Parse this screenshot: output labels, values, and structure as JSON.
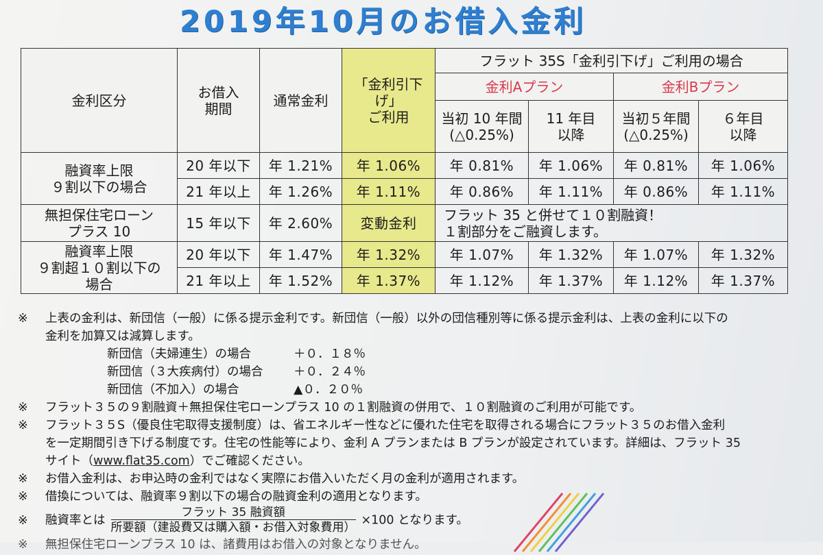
{
  "title": "2019年10月のお借入金利",
  "table": {
    "headers": {
      "category": "金利区分",
      "period": "お借入\n期間",
      "normal": "通常金利",
      "reduced": "「金利引下げ」\nご利用",
      "flat35s": "フラット 35S「金利引下げ」ご利用の場合",
      "plan_a": "金利Aプラン",
      "plan_b": "金利Bプラン",
      "a_first": "当初 10 年間\n(△0.25%)",
      "a_after": "11 年目\n以降",
      "b_first": "当初５年間\n(△0.25%)",
      "b_after": "６年目\n以降"
    },
    "groups": [
      {
        "category": "融資率上限\n９割以下の場合",
        "rows": [
          {
            "period": "20 年以下",
            "normal": "年 1.21%",
            "reduced": "年 1.06%",
            "a_first": "年 0.81%",
            "a_after": "年 1.06%",
            "b_first": "年 0.81%",
            "b_after": "年 1.06%"
          },
          {
            "period": "21 年以上",
            "normal": "年 1.26%",
            "reduced": "年 1.11%",
            "a_first": "年 0.86%",
            "a_after": "年 1.11%",
            "b_first": "年 0.86%",
            "b_after": "年 1.11%"
          }
        ]
      },
      {
        "category": "無担保住宅ローン\nプラス 10",
        "rows": [
          {
            "period": "15 年以下",
            "normal": "年 2.60%",
            "reduced": "変動金利",
            "merged": "フラット 35 と併せて１０割融資！\n１割部分をご融資します。"
          }
        ]
      },
      {
        "category": "融資率上限\n９割超１０割以下の\n場合",
        "rows": [
          {
            "period": "20 年以下",
            "normal": "年 1.47%",
            "reduced": "年 1.32%",
            "a_first": "年 1.07%",
            "a_after": "年 1.32%",
            "b_first": "年 1.07%",
            "b_after": "年 1.32%"
          },
          {
            "period": "21 年以上",
            "normal": "年 1.52%",
            "reduced": "年 1.37%",
            "a_first": "年 1.12%",
            "a_after": "年 1.37%",
            "b_first": "年 1.12%",
            "b_after": "年 1.37%"
          }
        ]
      }
    ]
  },
  "notes": {
    "mark": "※",
    "n1_line1": "上表の金利は、新団信（一般）に係る提示金利です。新団信（一般）以外の団信種別等に係る提示金利は、上表の金利に以下の",
    "n1_line2": "金利を加算又は減算します。",
    "sub": [
      {
        "label": "新団信（夫婦連生）の場合",
        "value": "＋０．１８％"
      },
      {
        "label": "新団信（３大疾病付）の場合",
        "value": "＋０．２４％"
      },
      {
        "label": "新団信（不加入）の場合",
        "value": "▲０．２０％"
      }
    ],
    "n2": "フラット３５の９割融資＋無担保住宅ローンプラス 10 の１割融資の併用で、１０割融資のご利用が可能です。",
    "n3_line1": "フラット３５S（優良住宅取得支援制度）は、省エネルギー性などに優れた住宅を取得される場合にフラット３５のお借入金利",
    "n3_line2": "を一定期間引き下げる制度です。住宅の性能等により、金利 A プランまたは B プランが設定されています。詳細は、フラット 35",
    "n3_line3_pre": "サイト（",
    "n3_link": "www.flat35.com",
    "n3_line3_post": "）でご確認ください。",
    "n4": "お借入金利は、お申込時の金利ではなく実際にお借入いただく月の金利が適用されます。",
    "n5": "借換については、融資率９割以下の場合の融資金利の適用となります。",
    "n6_pre": "融資率とは",
    "n6_num": "フラット 35 融資額",
    "n6_den": "所要額（建設費又は購入額・お借入対象費用）",
    "n6_post": "×100 となります。",
    "n7": "無担保住宅ローンプラス 10 は、諸費用はお借入の対象となりません。"
  },
  "colors": {
    "title": "#2f7fd0",
    "highlight": "#e8e88c",
    "plan_label": "#d9384a"
  }
}
